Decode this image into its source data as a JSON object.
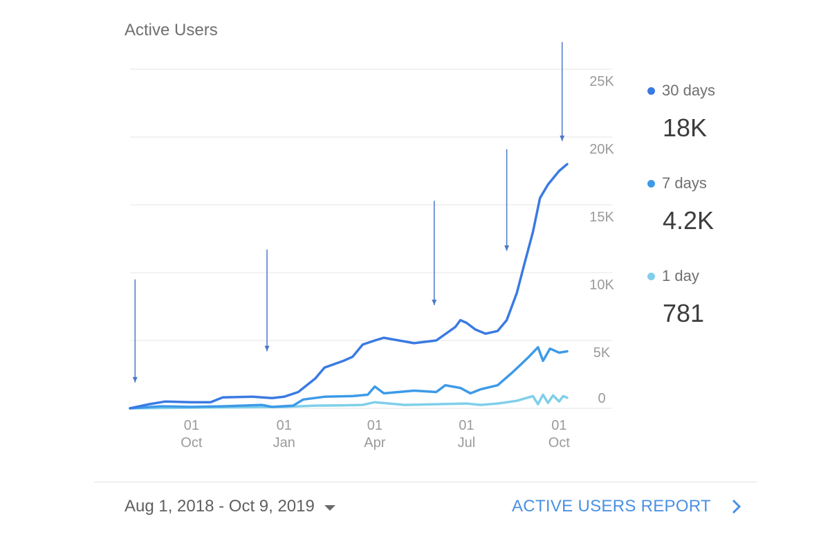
{
  "card": {
    "title": "Active Users",
    "date_range": "Aug 1, 2018 - Oct 9, 2019",
    "report_link": "ACTIVE USERS REPORT",
    "icons": {
      "date_dropdown": "caret-down-icon",
      "report": "chevron-right-icon"
    }
  },
  "legend": [
    {
      "name": "30 days",
      "value": "18K",
      "color": "#3a7ae2"
    },
    {
      "name": "7 days",
      "value": "4.2K",
      "color": "#3d9ae8"
    },
    {
      "name": "1 day",
      "value": "781",
      "color": "#7fcfea"
    }
  ],
  "chart_data": {
    "type": "line",
    "title": "Active Users",
    "x_range": [
      "2018-08-01",
      "2019-10-09"
    ],
    "y_range": [
      0,
      25000
    ],
    "y_ticks": [
      {
        "value": 0,
        "label": "0"
      },
      {
        "value": 5000,
        "label": "5K"
      },
      {
        "value": 10000,
        "label": "10K"
      },
      {
        "value": 15000,
        "label": "15K"
      },
      {
        "value": 20000,
        "label": "20K"
      },
      {
        "value": 25000,
        "label": "25K"
      }
    ],
    "x_ticks": [
      {
        "date": "2018-10-01",
        "day": "01",
        "month": "Oct"
      },
      {
        "date": "2019-01-01",
        "day": "01",
        "month": "Jan"
      },
      {
        "date": "2019-04-01",
        "day": "01",
        "month": "Apr"
      },
      {
        "date": "2019-07-01",
        "day": "01",
        "month": "Jul"
      },
      {
        "date": "2019-10-01",
        "day": "01",
        "month": "Oct"
      }
    ],
    "grid": true,
    "legend_position": "right",
    "series": [
      {
        "name": "30 days",
        "color": "#3a7ae2",
        "points": [
          [
            "2018-08-01",
            0
          ],
          [
            "2018-08-20",
            300
          ],
          [
            "2018-09-05",
            500
          ],
          [
            "2018-10-01",
            450
          ],
          [
            "2018-10-20",
            450
          ],
          [
            "2018-11-01",
            800
          ],
          [
            "2018-12-01",
            850
          ],
          [
            "2018-12-20",
            750
          ],
          [
            "2019-01-01",
            850
          ],
          [
            "2019-01-15",
            1200
          ],
          [
            "2019-02-01",
            2200
          ],
          [
            "2019-02-10",
            3000
          ],
          [
            "2019-03-01",
            3500
          ],
          [
            "2019-03-10",
            3800
          ],
          [
            "2019-03-20",
            4700
          ],
          [
            "2019-04-01",
            5000
          ],
          [
            "2019-04-10",
            5200
          ],
          [
            "2019-04-25",
            5000
          ],
          [
            "2019-05-10",
            4800
          ],
          [
            "2019-06-01",
            5000
          ],
          [
            "2019-06-20",
            6000
          ],
          [
            "2019-06-25",
            6500
          ],
          [
            "2019-07-01",
            6300
          ],
          [
            "2019-07-10",
            5800
          ],
          [
            "2019-07-20",
            5500
          ],
          [
            "2019-08-01",
            5700
          ],
          [
            "2019-08-10",
            6500
          ],
          [
            "2019-08-20",
            8500
          ],
          [
            "2019-08-27",
            10500
          ],
          [
            "2019-09-05",
            13000
          ],
          [
            "2019-09-12",
            15500
          ],
          [
            "2019-09-20",
            16500
          ],
          [
            "2019-10-01",
            17500
          ],
          [
            "2019-10-09",
            18000
          ]
        ]
      },
      {
        "name": "7 days",
        "color": "#3d9ae8",
        "points": [
          [
            "2018-08-01",
            0
          ],
          [
            "2018-09-01",
            150
          ],
          [
            "2018-10-01",
            100
          ],
          [
            "2018-11-01",
            150
          ],
          [
            "2018-12-10",
            250
          ],
          [
            "2018-12-20",
            100
          ],
          [
            "2019-01-10",
            200
          ],
          [
            "2019-01-20",
            650
          ],
          [
            "2019-02-10",
            850
          ],
          [
            "2019-03-10",
            900
          ],
          [
            "2019-03-25",
            1000
          ],
          [
            "2019-04-01",
            1600
          ],
          [
            "2019-04-10",
            1100
          ],
          [
            "2019-05-10",
            1300
          ],
          [
            "2019-06-01",
            1200
          ],
          [
            "2019-06-10",
            1700
          ],
          [
            "2019-06-25",
            1500
          ],
          [
            "2019-07-05",
            1100
          ],
          [
            "2019-07-15",
            1400
          ],
          [
            "2019-08-01",
            1700
          ],
          [
            "2019-08-15",
            2600
          ],
          [
            "2019-08-25",
            3300
          ],
          [
            "2019-09-01",
            3800
          ],
          [
            "2019-09-10",
            4500
          ],
          [
            "2019-09-15",
            3500
          ],
          [
            "2019-09-22",
            4400
          ],
          [
            "2019-10-01",
            4100
          ],
          [
            "2019-10-09",
            4200
          ]
        ]
      },
      {
        "name": "1 day",
        "color": "#7fcfea",
        "points": [
          [
            "2018-08-01",
            0
          ],
          [
            "2018-10-01",
            50
          ],
          [
            "2018-12-01",
            80
          ],
          [
            "2019-01-01",
            100
          ],
          [
            "2019-02-01",
            200
          ],
          [
            "2019-03-01",
            220
          ],
          [
            "2019-03-20",
            250
          ],
          [
            "2019-04-01",
            450
          ],
          [
            "2019-05-01",
            250
          ],
          [
            "2019-06-01",
            300
          ],
          [
            "2019-07-01",
            350
          ],
          [
            "2019-07-15",
            250
          ],
          [
            "2019-08-01",
            350
          ],
          [
            "2019-08-20",
            550
          ],
          [
            "2019-09-05",
            900
          ],
          [
            "2019-09-10",
            300
          ],
          [
            "2019-09-15",
            1000
          ],
          [
            "2019-09-20",
            400
          ],
          [
            "2019-09-25",
            950
          ],
          [
            "2019-10-01",
            500
          ],
          [
            "2019-10-05",
            900
          ],
          [
            "2019-10-09",
            781
          ]
        ]
      }
    ],
    "annotations": [
      {
        "type": "arrow",
        "x": "2018-08-06",
        "y_top": 9500,
        "y_bottom": 1900
      },
      {
        "type": "arrow",
        "x": "2018-12-15",
        "y_top": 11700,
        "y_bottom": 4200
      },
      {
        "type": "arrow",
        "x": "2019-05-30",
        "y_top": 15300,
        "y_bottom": 7600
      },
      {
        "type": "arrow",
        "x": "2019-08-10",
        "y_top": 19100,
        "y_bottom": 11600
      },
      {
        "type": "arrow",
        "x": "2019-10-04",
        "y_top": 27000,
        "y_bottom": 19700
      }
    ]
  }
}
